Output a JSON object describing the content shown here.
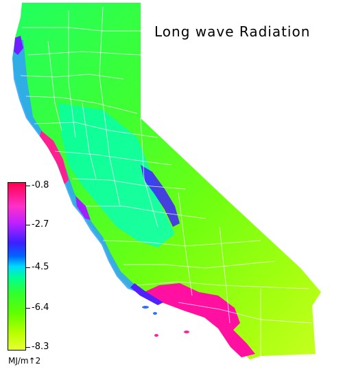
{
  "title": "Long wave Radiation",
  "legend": {
    "ticks": [
      "-0.8",
      "-2.7",
      "-4.5",
      "-6.4",
      "-8.3"
    ],
    "units": "MJ/m↑2"
  },
  "colors": {
    "high": "#ff0050",
    "mid_high": "#c020ff",
    "mid": "#00d8ff",
    "mid_low": "#30ff30",
    "low": "#e8ff30",
    "boundaries": "#ffffff",
    "background": "#ffffff"
  }
}
